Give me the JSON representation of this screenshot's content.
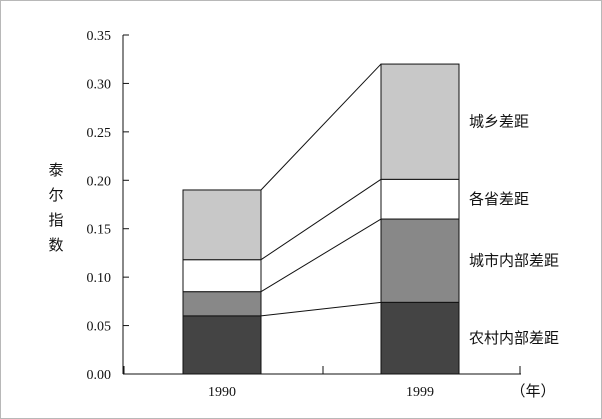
{
  "chart_data": {
    "type": "bar",
    "stacked": true,
    "categories": [
      "1990",
      "1999"
    ],
    "series": [
      {
        "name": "农村内部差距",
        "values": [
          0.06,
          0.074
        ],
        "color": "#444444"
      },
      {
        "name": "城市内部差距",
        "values": [
          0.025,
          0.086
        ],
        "color": "#888888"
      },
      {
        "name": "各省差距",
        "values": [
          0.033,
          0.041
        ],
        "color": "#ffffff"
      },
      {
        "name": "城乡差距",
        "values": [
          0.072,
          0.119
        ],
        "color": "#c8c8c8"
      }
    ],
    "ylabel": "泰尔指数",
    "xunit": "（年）",
    "ylim": [
      0,
      0.35
    ],
    "yticks": [
      "0.00",
      "0.05",
      "0.10",
      "0.15",
      "0.20",
      "0.25",
      "0.30",
      "0.35"
    ],
    "legend_placement": "right of 1999 bar",
    "grid": false
  }
}
